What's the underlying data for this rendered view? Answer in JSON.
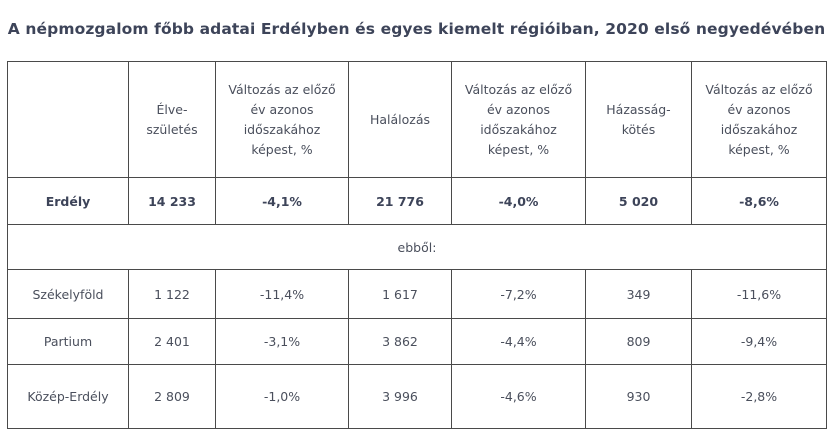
{
  "title": "A népmozgalom főbb adatai Erdélyben és egyes kiemelt régióiban, 2020 első negyedévében",
  "header": {
    "col0": "",
    "col1": "Élve-születés",
    "col2": "Változás az előző év azonos időszakához képest, %",
    "col3": "Halálozás",
    "col4": "Változás az előző év azonos időszakához képest, %",
    "col5": "Házasság-kötés",
    "col6": "Változás az előző év azonos időszakához képest, %"
  },
  "erdely": {
    "name": "Erdély",
    "births": "14 233",
    "births_change": "-4,1%",
    "deaths": "21 776",
    "deaths_change": "-4,0%",
    "marriages": "5 020",
    "marriages_change": "-8,6%"
  },
  "ebbol": "ebből:",
  "rows": [
    {
      "name": "Székelyföld",
      "births": "1 122",
      "births_change": "-11,4%",
      "deaths": "1 617",
      "deaths_change": "-7,2%",
      "marriages": "349",
      "marriages_change": "-11,6%"
    },
    {
      "name": "Partium",
      "births": "2 401",
      "births_change": "-3,1%",
      "deaths": "3 862",
      "deaths_change": "-4,4%",
      "marriages": "809",
      "marriages_change": "-9,4%"
    },
    {
      "name": "Közép-Erdély",
      "births": "2 809",
      "births_change": "-1,0%",
      "deaths": "3 996",
      "deaths_change": "-4,6%",
      "marriages": "930",
      "marriages_change": "-2,8%"
    }
  ]
}
